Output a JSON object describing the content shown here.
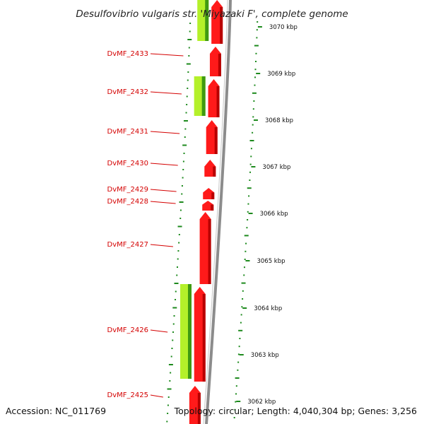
{
  "title": "Desulfovibrio vulgaris str. 'Miyazaki F', complete genome",
  "footer": {
    "accession": "Accession: NC_011769",
    "summary": "Topology: circular; Length: 4,040,304 bp; Genes: 3,256"
  },
  "colors": {
    "forward_cds": "#ff1a1a",
    "forward_cds_dark": "#b80000",
    "rna_or_secondary": "#b4f02a",
    "rna_dark": "#3f9a12",
    "backbone": "#8c8c8c",
    "tick_dots": "#1d8a1d",
    "label_red": "#d40000"
  },
  "gene_labels": [
    "DvMF_2433",
    "DvMF_2432",
    "DvMF_2431",
    "DvMF_2430",
    "DvMF_2429",
    "DvMF_2428",
    "DvMF_2427",
    "DvMF_2426",
    "DvMF_2425"
  ],
  "scale_labels": [
    "3070 kbp",
    "3069 kbp",
    "3068 kbp",
    "3067 kbp",
    "3066 kbp",
    "3065 kbp",
    "3064 kbp",
    "3063 kbp",
    "3062 kbp"
  ]
}
